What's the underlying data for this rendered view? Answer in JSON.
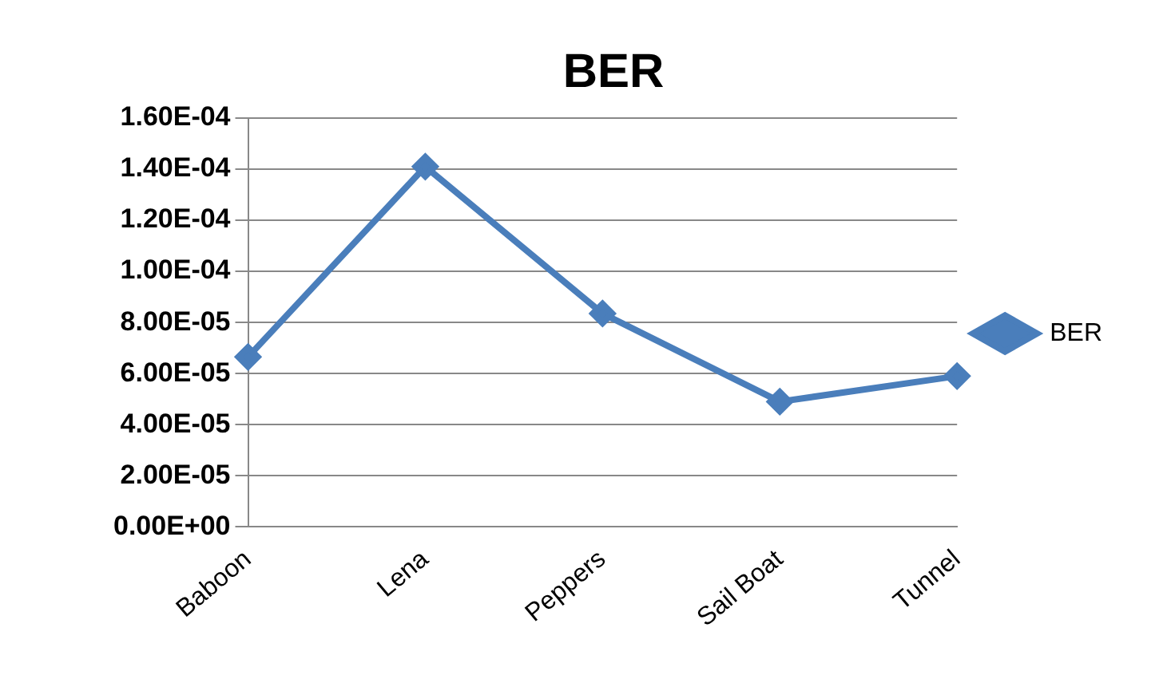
{
  "chart_data": {
    "type": "line",
    "title": "BER",
    "categories": [
      "Baboon",
      "Lena",
      "Peppers",
      "Sail Boat",
      "Tunnel"
    ],
    "series": [
      {
        "name": "BER",
        "color": "#4a7ebb",
        "values": [
          6.65e-05,
          0.000141,
          8.35e-05,
          4.9e-05,
          5.9e-05
        ]
      }
    ],
    "ylim": [
      0,
      0.00016
    ],
    "yticks": [
      {
        "value": 0,
        "label": "0.00E+00"
      },
      {
        "value": 2e-05,
        "label": "2.00E-05"
      },
      {
        "value": 4e-05,
        "label": "4.00E-05"
      },
      {
        "value": 6e-05,
        "label": "6.00E-05"
      },
      {
        "value": 8e-05,
        "label": "8.00E-05"
      },
      {
        "value": 0.0001,
        "label": "1.00E-04"
      },
      {
        "value": 0.00012,
        "label": "1.20E-04"
      },
      {
        "value": 0.00014,
        "label": "1.40E-04"
      },
      {
        "value": 0.00016,
        "label": "1.60E-04"
      }
    ],
    "grid": "y",
    "legend": "right",
    "marker": "diamond",
    "line_style": "solid"
  }
}
